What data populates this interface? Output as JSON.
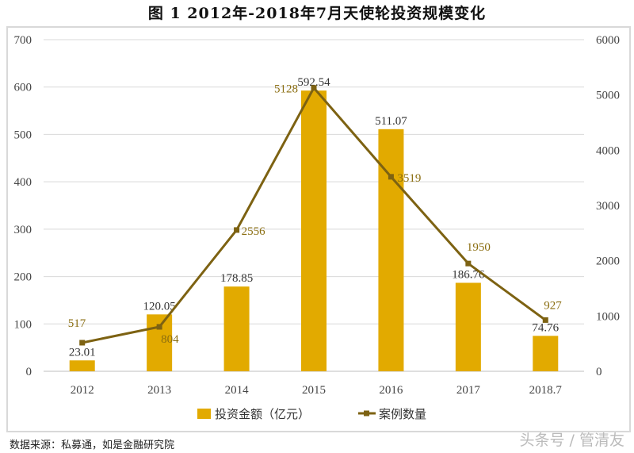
{
  "title": "图 1    2012年-2018年7月天使轮投资规模变化",
  "source": "数据来源：私募通，如是金融研究院",
  "watermark": "头条号 / 管清友",
  "colors": {
    "bar": "#E2AA00",
    "line": "#7D6212",
    "line_label": "#8A6D10",
    "grid": "#d9d9d9"
  },
  "chart_data": {
    "type": "bar",
    "categories": [
      "2012",
      "2013",
      "2014",
      "2015",
      "2016",
      "2017",
      "2018.7"
    ],
    "series": [
      {
        "name": "投资金额（亿元）",
        "type": "bar",
        "axis": "left",
        "values": [
          23.01,
          120.05,
          178.85,
          592.54,
          511.07,
          186.76,
          74.76
        ],
        "labels": [
          "23.01",
          "120.05",
          "178.85",
          "592.54",
          "511.07",
          "186.76",
          "74.76"
        ]
      },
      {
        "name": "案例数量",
        "type": "line",
        "axis": "right",
        "values": [
          517,
          804,
          2556,
          5128,
          3519,
          1950,
          927
        ],
        "labels": [
          "517",
          "804",
          "2556",
          "5128",
          "3519",
          "1950",
          "927"
        ]
      }
    ],
    "ylim": [
      0,
      700
    ],
    "yticks": [
      "0",
      "100",
      "200",
      "300",
      "400",
      "500",
      "600",
      "700"
    ],
    "y2lim": [
      0,
      6000
    ],
    "y2ticks": [
      "0",
      "1000",
      "2000",
      "3000",
      "4000",
      "5000",
      "6000"
    ],
    "grid": true,
    "legend": "bottom"
  }
}
